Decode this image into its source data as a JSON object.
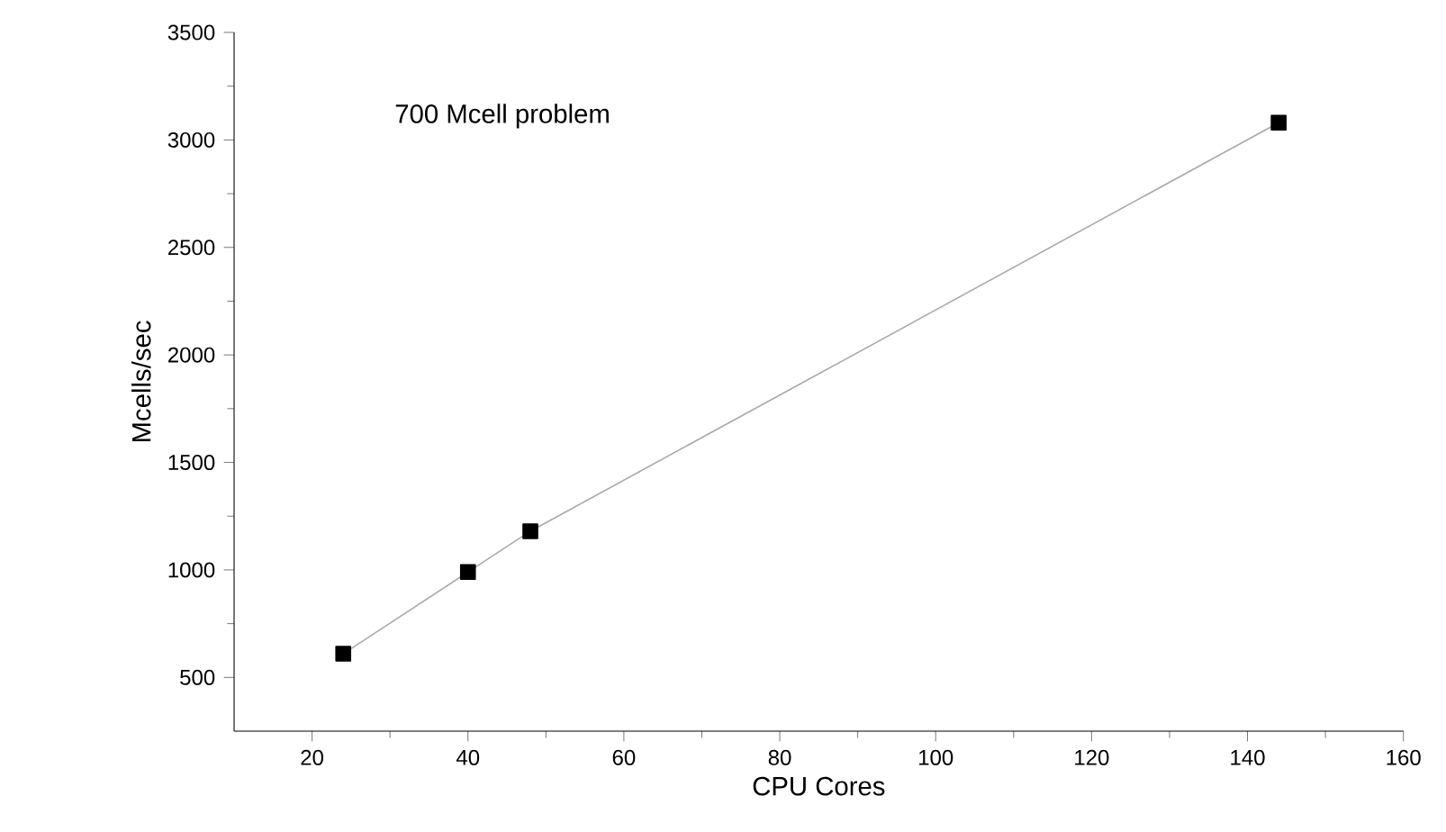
{
  "chart_data": {
    "type": "line",
    "xlabel": "CPU Cores",
    "ylabel": "Mcells/sec",
    "annotations": [
      "700 Mcell problem"
    ],
    "x": [
      24,
      40,
      48,
      144
    ],
    "series": [
      {
        "color": "#aaaaaa",
        "values": [
          610,
          990,
          1180,
          3080
        ]
      }
    ],
    "marker": "square",
    "line_style": "solid",
    "grid": false,
    "xlim": [
      10,
      160
    ],
    "xticks": [
      20,
      40,
      60,
      80,
      100,
      120,
      140,
      160
    ],
    "ylim": [
      250,
      3500
    ],
    "yticks": [
      500,
      1000,
      1500,
      2000,
      2500,
      3000,
      3500
    ]
  }
}
